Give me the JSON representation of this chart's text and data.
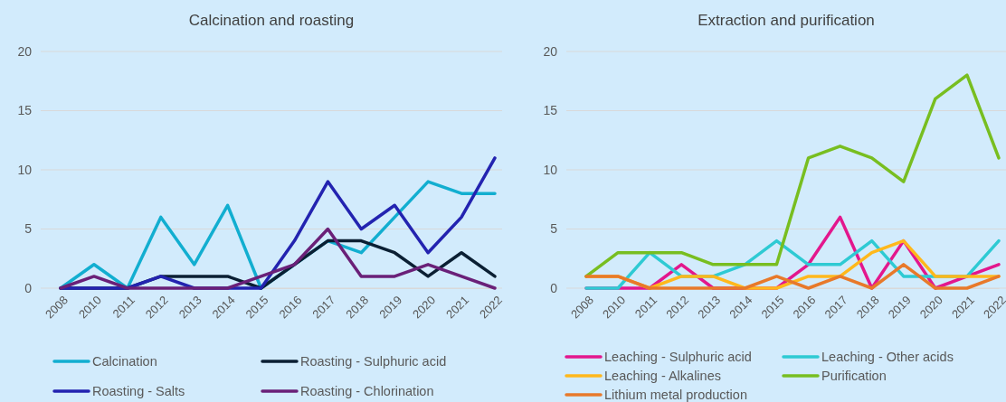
{
  "chart_data": [
    {
      "type": "line",
      "title": "Calcination and roasting",
      "categories": [
        "2008",
        "2010",
        "2011",
        "2012",
        "2013",
        "2014",
        "2015",
        "2016",
        "2017",
        "2018",
        "2019",
        "2020",
        "2021",
        "2022"
      ],
      "ylim": [
        0,
        20
      ],
      "yticks": [
        0,
        5,
        10,
        15,
        20
      ],
      "grid": "y",
      "legend": "bottom",
      "series": [
        {
          "name": "Calcination",
          "color": "#12aed0",
          "values": [
            0,
            2,
            0,
            6,
            2,
            7,
            0,
            2,
            4,
            3,
            6,
            9,
            8,
            8
          ]
        },
        {
          "name": "Roasting - Sulphuric acid",
          "color": "#0b1f33",
          "values": [
            0,
            0,
            0,
            1,
            1,
            1,
            0,
            2,
            4,
            4,
            3,
            1,
            3,
            1
          ]
        },
        {
          "name": "Roasting - Salts",
          "color": "#2323b0",
          "values": [
            0,
            0,
            0,
            1,
            0,
            0,
            0,
            4,
            9,
            5,
            7,
            3,
            6,
            11
          ]
        },
        {
          "name": "Roasting - Chlorination",
          "color": "#6a2078",
          "values": [
            0,
            1,
            0,
            0,
            0,
            0,
            1,
            2,
            5,
            1,
            1,
            2,
            1,
            0
          ]
        }
      ]
    },
    {
      "type": "line",
      "title": "Extraction and purification",
      "categories": [
        "2008",
        "2010",
        "2011",
        "2012",
        "2013",
        "2014",
        "2015",
        "2016",
        "2017",
        "2018",
        "2019",
        "2020",
        "2021",
        "2022"
      ],
      "ylim": [
        0,
        20
      ],
      "yticks": [
        0,
        5,
        10,
        15,
        20
      ],
      "grid": "y",
      "legend": "bottom",
      "series": [
        {
          "name": "Leaching - Sulphuric acid",
          "color": "#e3178d",
          "values": [
            0,
            0,
            0,
            2,
            0,
            0,
            0,
            2,
            6,
            0,
            4,
            0,
            1,
            2
          ]
        },
        {
          "name": "Leaching - Other acids",
          "color": "#2ecad3",
          "values": [
            0,
            0,
            3,
            1,
            1,
            2,
            4,
            2,
            2,
            4,
            1,
            1,
            1,
            4
          ]
        },
        {
          "name": "Leaching - Alkalines",
          "color": "#ffb81c",
          "values": [
            1,
            1,
            0,
            1,
            1,
            0,
            0,
            1,
            1,
            3,
            4,
            1,
            1,
            1
          ]
        },
        {
          "name": "Purification",
          "color": "#78be20",
          "values": [
            1,
            3,
            3,
            3,
            2,
            2,
            2,
            11,
            12,
            11,
            9,
            16,
            18,
            11
          ]
        },
        {
          "name": "Lithium metal production",
          "color": "#e8792a",
          "values": [
            1,
            1,
            0,
            0,
            0,
            0,
            1,
            0,
            1,
            0,
            2,
            0,
            0,
            1
          ]
        }
      ]
    }
  ]
}
